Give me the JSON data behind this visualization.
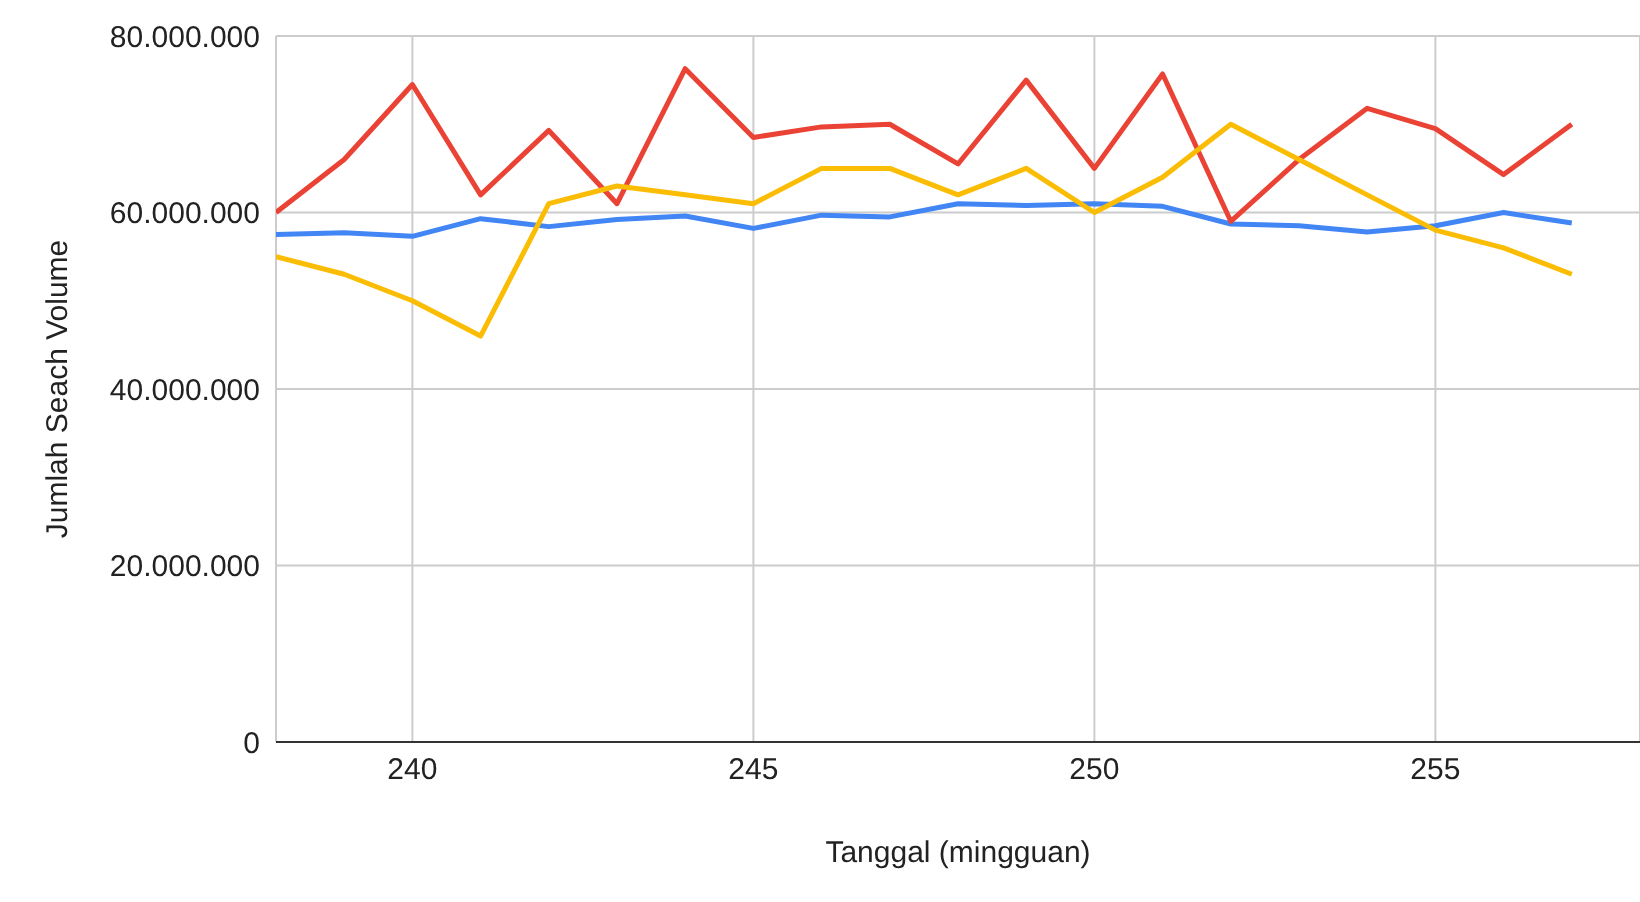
{
  "chart_data": {
    "type": "line",
    "xlabel": "Tanggal (mingguan)",
    "ylabel": "Jumlah Seach Volume",
    "x": [
      238,
      239,
      240,
      241,
      242,
      243,
      244,
      245,
      246,
      247,
      248,
      249,
      250,
      251,
      252,
      253,
      254,
      255,
      256,
      257
    ],
    "series": [
      {
        "color": "#4285f4",
        "values": [
          57500000,
          57700000,
          57300000,
          59300000,
          58400000,
          59200000,
          59600000,
          58200000,
          59700000,
          59500000,
          61000000,
          60800000,
          61000000,
          60700000,
          58700000,
          58500000,
          57800000,
          58500000,
          60000000,
          58800000
        ]
      },
      {
        "color": "#ea4335",
        "values": [
          60000000,
          66000000,
          74500000,
          62000000,
          69300000,
          61000000,
          76300000,
          68500000,
          69700000,
          70000000,
          65500000,
          75000000,
          65000000,
          75700000,
          59000000,
          66000000,
          71800000,
          69500000,
          64300000,
          70000000
        ]
      },
      {
        "color": "#fbbc04",
        "values": [
          55000000,
          53000000,
          50000000,
          46000000,
          61000000,
          63000000,
          62000000,
          61000000,
          65000000,
          65000000,
          62000000,
          65000000,
          60000000,
          64000000,
          70000000,
          66000000,
          62000000,
          58000000,
          56000000,
          53000000
        ]
      }
    ],
    "xlim": [
      238,
      258
    ],
    "xticks": [
      240,
      245,
      250,
      255
    ],
    "ylim": [
      0,
      80000000
    ],
    "yticks": [
      0,
      {
        "value": 20000000,
        "label": "20.000.000"
      },
      {
        "value": 40000000,
        "label": "40.000.000"
      },
      {
        "value": 60000000,
        "label": "60.000.000"
      },
      {
        "value": 80000000,
        "label": "80.000.000"
      }
    ],
    "grid": true,
    "marker": "none",
    "line_style": "solid"
  }
}
